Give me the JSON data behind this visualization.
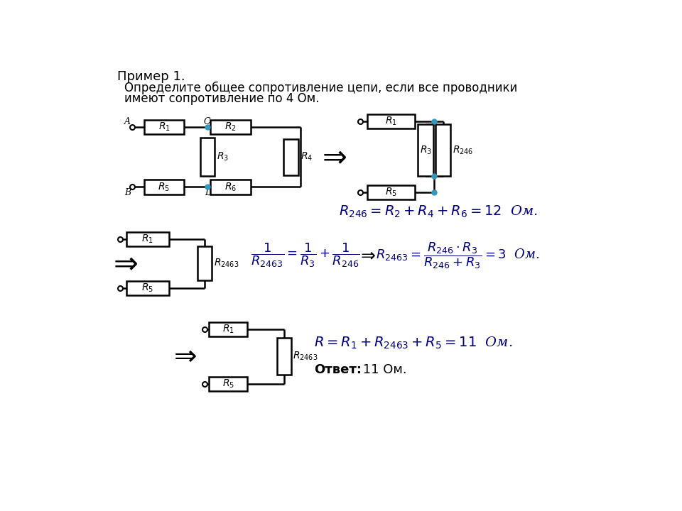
{
  "title": "Пример 1.",
  "subtitle_line1": "Определите общее сопротивление цепи, если все проводники",
  "subtitle_line2": "имеют сопротивление по 4 Ом.",
  "bg_color": "#ffffff",
  "line_color": "#000000",
  "dot_color": "#3399bb",
  "text_color": "#000000",
  "formula_color": "#000080",
  "lw": 1.8,
  "title_fontsize": 13,
  "text_fontsize": 12,
  "math_fontsize": 13,
  "resistor_fontsize": 10
}
